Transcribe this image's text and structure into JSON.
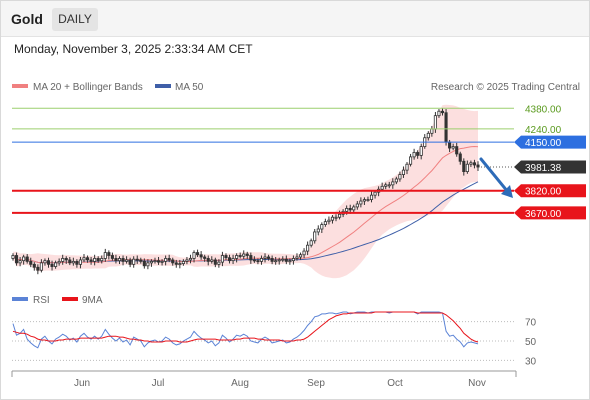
{
  "header": {
    "symbol": "Gold",
    "timeframe": "DAILY",
    "timestamp": "Monday, November 3, 2025 2:33:34 AM CET"
  },
  "legend": {
    "ma20": "MA 20 + Bollinger Bands",
    "ma50": "MA 50",
    "source": "Research © 2025 Trading Central",
    "rsi": "RSI",
    "rsi_ma": "9MA"
  },
  "colors": {
    "candle": "#333333",
    "ma20": "#f08080",
    "ma50": "#3f5fa8",
    "bollinger_fill": "#fbd9d9",
    "resistance_green": "#9ccf6e",
    "resistance_label_green": "#5a9a1e",
    "pivot_blue": "#2d6fe0",
    "support_red": "#e8141b",
    "last_price": "#333333",
    "arrow": "#2d6bb8",
    "rsi_line": "#5b83d6",
    "rsi_ma_line": "#e8141b"
  },
  "chart_data": [
    {
      "type": "candlestick",
      "ylim": [
        3200,
        4450
      ],
      "x_tick_labels": [
        "Jun",
        "Jul",
        "Aug",
        "Sep",
        "Oct",
        "Nov"
      ],
      "last_price": "3981.38",
      "levels": [
        {
          "value": 4380,
          "label": "4380.00",
          "role": "resistance"
        },
        {
          "value": 4240,
          "label": "4240.00",
          "role": "resistance"
        },
        {
          "value": 4150,
          "label": "4150.00",
          "role": "pivot"
        },
        {
          "value": 3820,
          "label": "3820.00",
          "role": "support"
        },
        {
          "value": 3670,
          "label": "3670.00",
          "role": "support"
        }
      ],
      "closes": [
        3380,
        3330,
        3345,
        3370,
        3340,
        3320,
        3300,
        3280,
        3330,
        3345,
        3320,
        3305,
        3330,
        3340,
        3360,
        3350,
        3330,
        3340,
        3320,
        3350,
        3365,
        3350,
        3340,
        3360,
        3345,
        3360,
        3400,
        3380,
        3360,
        3345,
        3360,
        3340,
        3350,
        3320,
        3355,
        3350,
        3340,
        3310,
        3330,
        3340,
        3345,
        3335,
        3340,
        3360,
        3350,
        3330,
        3320,
        3325,
        3340,
        3350,
        3360,
        3400,
        3385,
        3370,
        3360,
        3340,
        3350,
        3320,
        3335,
        3380,
        3365,
        3345,
        3360,
        3380,
        3375,
        3390,
        3380,
        3350,
        3345,
        3340,
        3360,
        3370,
        3360,
        3340,
        3345,
        3350,
        3355,
        3340,
        3345,
        3360,
        3370,
        3385,
        3410,
        3450,
        3480,
        3540,
        3560,
        3590,
        3610,
        3620,
        3640,
        3640,
        3660,
        3680,
        3700,
        3690,
        3710,
        3730,
        3750,
        3760,
        3760,
        3790,
        3810,
        3830,
        3850,
        3860,
        3860,
        3880,
        3900,
        3930,
        3960,
        4000,
        4050,
        4080,
        4060,
        4120,
        4180,
        4210,
        4240,
        4330,
        4360,
        4350,
        4150,
        4110,
        4120,
        4070,
        4020,
        3950,
        4000,
        4010,
        3995,
        3981
      ]
    },
    {
      "type": "line",
      "title": "RSI",
      "ylim": [
        20,
        80
      ],
      "y_ticks": [
        70,
        50,
        30
      ],
      "series": [
        {
          "name": "RSI",
          "values": [
            68,
            56,
            58,
            62,
            52,
            48,
            45,
            43,
            52,
            55,
            50,
            47,
            52,
            54,
            57,
            55,
            51,
            53,
            49,
            55,
            58,
            54,
            52,
            55,
            52,
            55,
            62,
            57,
            53,
            50,
            53,
            49,
            51,
            46,
            54,
            52,
            50,
            44,
            48,
            50,
            51,
            49,
            50,
            54,
            52,
            48,
            46,
            47,
            50,
            52,
            54,
            60,
            56,
            53,
            51,
            48,
            50,
            45,
            48,
            56,
            53,
            49,
            52,
            56,
            55,
            57,
            55,
            50,
            49,
            48,
            52,
            54,
            52,
            48,
            49,
            50,
            51,
            48,
            49,
            52,
            54,
            57,
            61,
            66,
            70,
            75,
            76,
            78,
            78,
            79,
            79,
            78,
            79,
            80,
            80,
            78,
            79,
            80,
            80,
            80,
            79,
            80,
            80,
            80,
            80,
            80,
            79,
            80,
            80,
            80,
            80,
            80,
            80,
            80,
            78,
            80,
            80,
            80,
            80,
            80,
            80,
            79,
            60,
            55,
            56,
            52,
            49,
            44,
            48,
            49,
            48,
            47
          ]
        },
        {
          "name": "9MA",
          "values": [
            60,
            59,
            58,
            58,
            57,
            55,
            54,
            52,
            51,
            51,
            50,
            50,
            50,
            51,
            51,
            52,
            52,
            52,
            52,
            53,
            53,
            53,
            53,
            53,
            53,
            53,
            54,
            55,
            55,
            55,
            54,
            54,
            53,
            52,
            52,
            51,
            51,
            50,
            50,
            49,
            49,
            49,
            49,
            50,
            50,
            50,
            50,
            49,
            49,
            49,
            50,
            51,
            52,
            52,
            52,
            52,
            52,
            52,
            51,
            51,
            51,
            51,
            51,
            52,
            52,
            53,
            53,
            53,
            53,
            52,
            52,
            51,
            51,
            51,
            51,
            51,
            50,
            50,
            50,
            50,
            51,
            51,
            52,
            54,
            57,
            60,
            63,
            66,
            69,
            72,
            74,
            76,
            77,
            78,
            78,
            79,
            79,
            79,
            79,
            79,
            79,
            79,
            80,
            80,
            80,
            80,
            80,
            80,
            80,
            80,
            80,
            80,
            80,
            80,
            79,
            79,
            79,
            79,
            79,
            79,
            79,
            79,
            77,
            74,
            71,
            67,
            63,
            58,
            55,
            52,
            50,
            49
          ]
        }
      ]
    }
  ]
}
